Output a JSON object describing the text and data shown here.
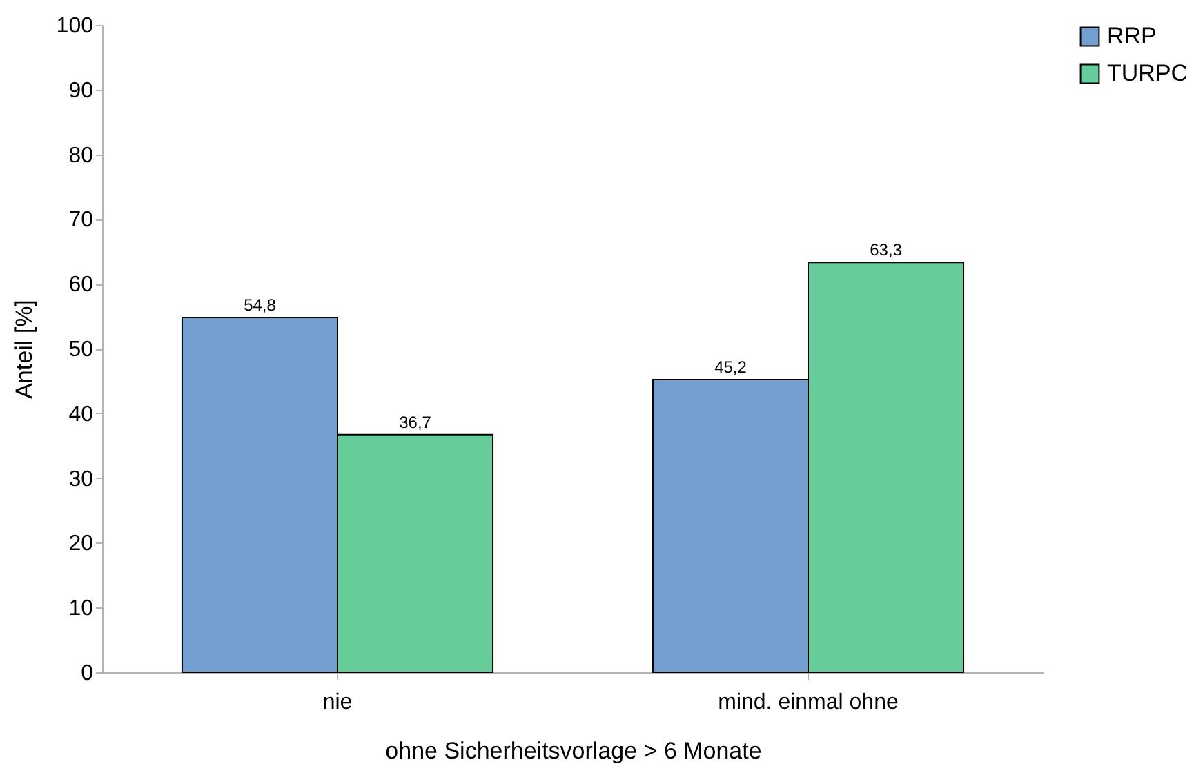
{
  "chart_data": {
    "type": "bar",
    "xlabel": "ohne Sicherheitsvorlage > 6 Monate",
    "ylabel": "Anteil [%]",
    "categories": [
      "nie",
      "mind. einmal ohne"
    ],
    "series": [
      {
        "name": "RRP",
        "color": "#729fcf",
        "values": [
          54.8,
          45.2
        ],
        "value_labels": [
          "54,8",
          "45,2"
        ]
      },
      {
        "name": "TURPC",
        "color": "#66cc99",
        "values": [
          36.7,
          63.3
        ],
        "value_labels": [
          "36,7",
          "63,3"
        ]
      }
    ],
    "ylim": [
      0,
      100
    ],
    "yticks": [
      0,
      10,
      20,
      30,
      40,
      50,
      60,
      70,
      80,
      90,
      100
    ],
    "grid": false,
    "legend": "right"
  }
}
